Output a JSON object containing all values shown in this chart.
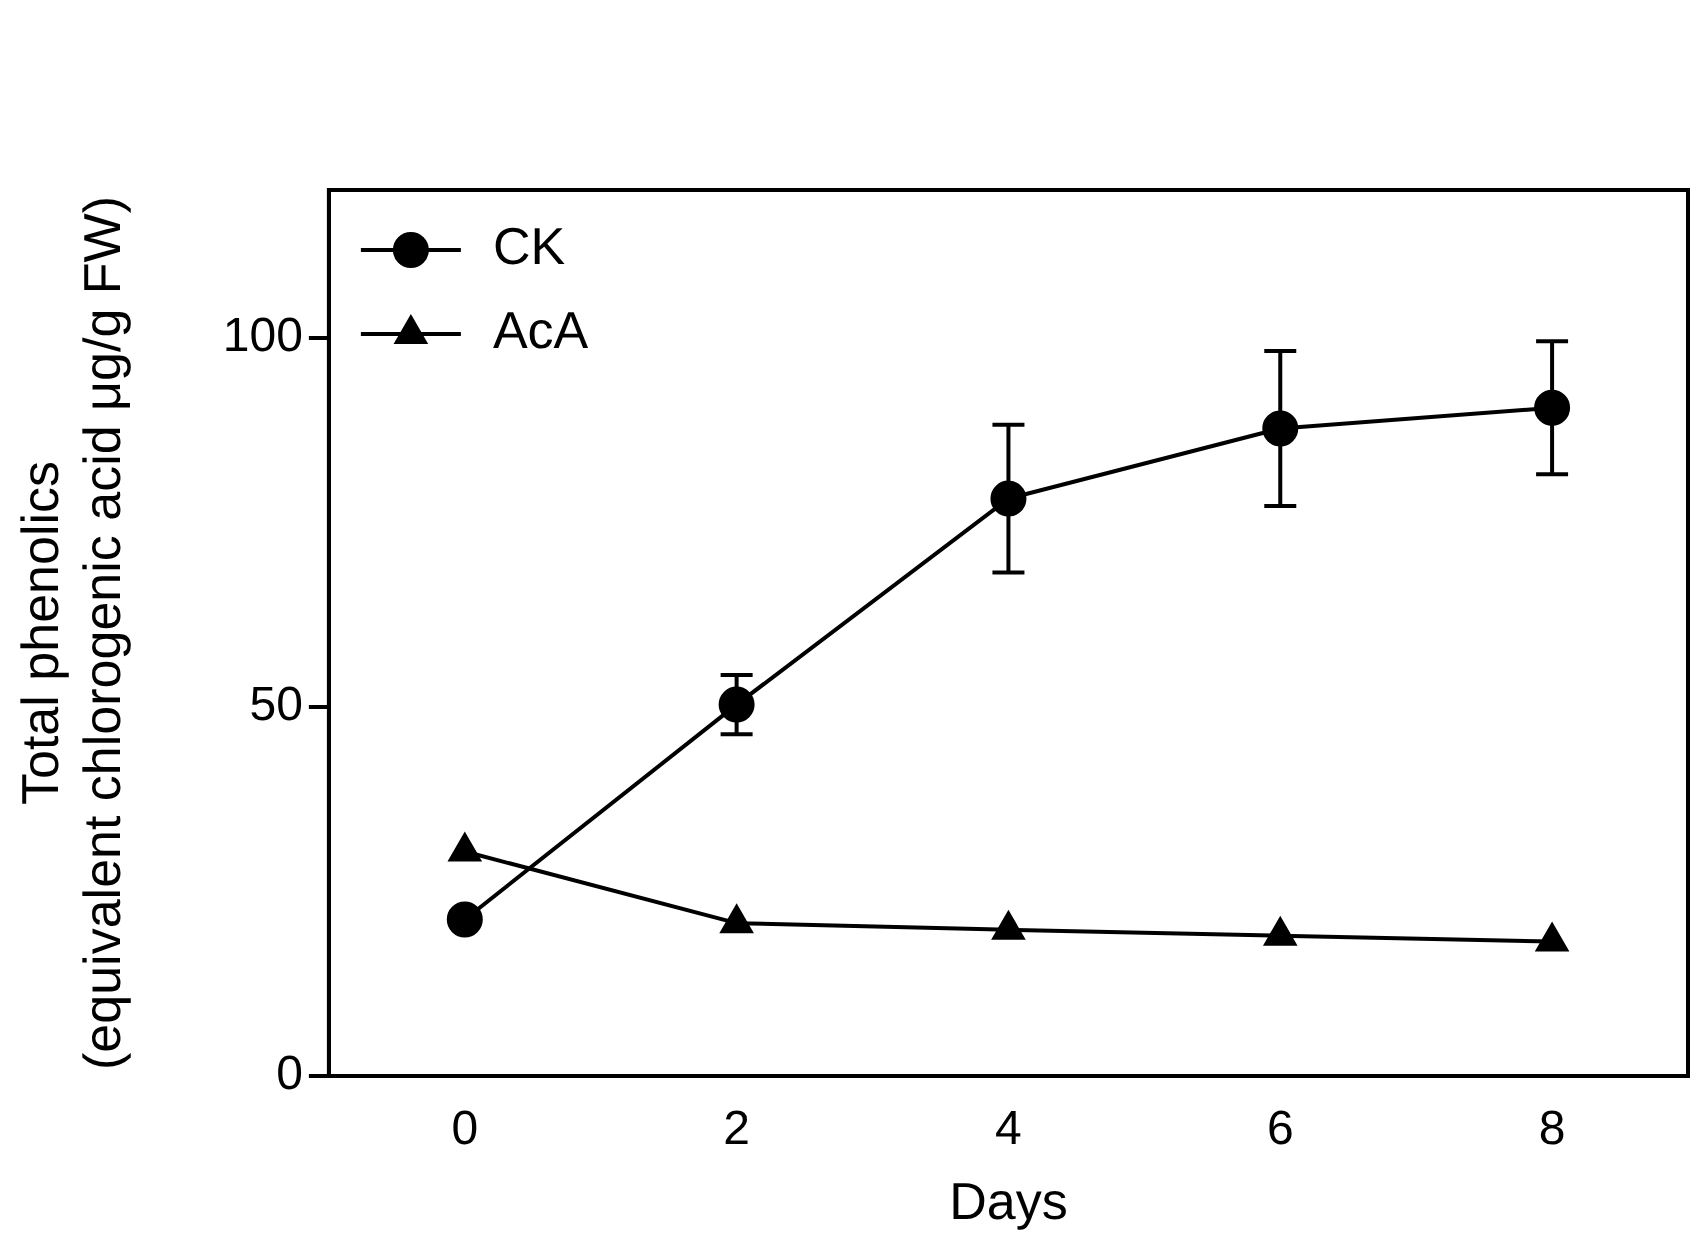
{
  "chart_data": {
    "type": "line",
    "xlabel": "Days",
    "ylabel": "Total phenolics\n(equivalent chlorogenic acid μg/g FW)",
    "x": [
      0,
      2,
      4,
      6,
      8
    ],
    "series": [
      {
        "name": "CK",
        "color": "#000000",
        "marker": "circle",
        "values": [
          21.2,
          50.3,
          78.2,
          87.7,
          90.5
        ],
        "errors": [
          null,
          4,
          10,
          10.5,
          9
        ]
      },
      {
        "name": "AcA",
        "color": "#000000",
        "marker": "triangle",
        "values": [
          30.4,
          20.7,
          19.8,
          19,
          18.2
        ]
      }
    ],
    "xlim": [
      -1,
      9
    ],
    "xticks": [
      0,
      2,
      4,
      6,
      8
    ],
    "ylim": [
      0,
      120
    ],
    "yticks": [
      0,
      50,
      100
    ],
    "grid": false,
    "legend": "top left",
    "line_style": "solid"
  }
}
